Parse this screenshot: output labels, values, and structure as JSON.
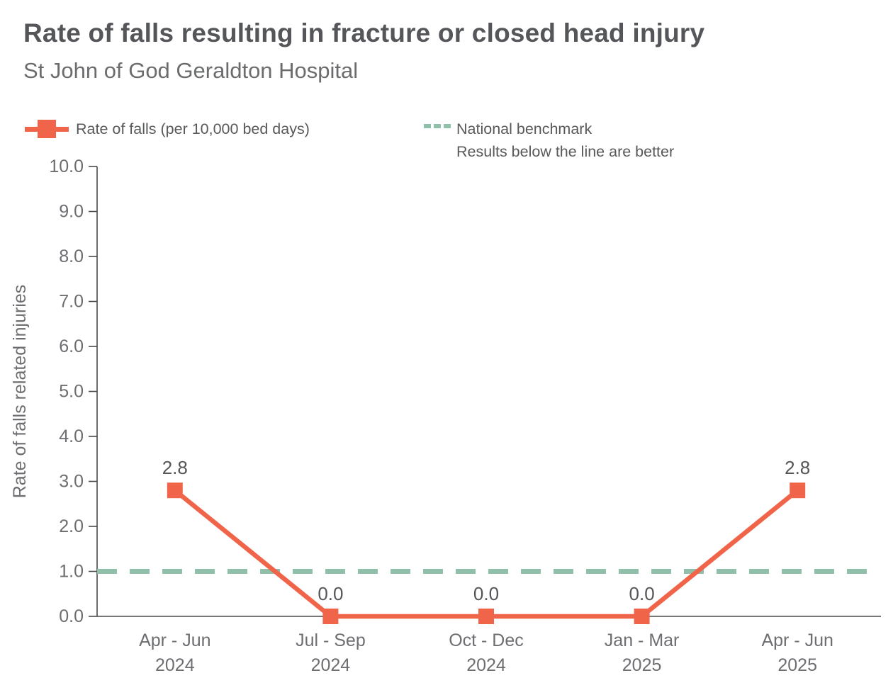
{
  "page": {
    "title": "Rate of falls resulting in fracture or closed head injury",
    "subtitle": "St John of God Geraldton Hospital"
  },
  "legend": {
    "series_label": "Rate of falls (per 10,000 bed days)",
    "benchmark_label": "National benchmark",
    "benchmark_note": "Results below the line are better"
  },
  "chart_data": {
    "type": "line",
    "title": "Rate of falls resulting in fracture or closed head injury",
    "subtitle": "St John of God Geraldton Hospital",
    "ylabel": "Rate of falls related injuries",
    "ylim": [
      0,
      10
    ],
    "ytick_step": 1,
    "ytick_decimals": 1,
    "grid": false,
    "legend_position": "top",
    "categories": [
      {
        "quarter": "Apr - Jun",
        "year": "2024"
      },
      {
        "quarter": "Jul - Sep",
        "year": "2024"
      },
      {
        "quarter": "Oct - Dec",
        "year": "2024"
      },
      {
        "quarter": "Jan - Mar",
        "year": "2025"
      },
      {
        "quarter": "Apr - Jun",
        "year": "2025"
      }
    ],
    "series": [
      {
        "name": "Rate of falls (per 10,000 bed days)",
        "values": [
          2.8,
          0.0,
          0.0,
          0.0,
          2.8
        ],
        "marker": "square"
      }
    ],
    "benchmark": {
      "label": "National benchmark",
      "note": "Results below the line are better",
      "value": 1.0,
      "style": "dashed"
    },
    "colors": {
      "series": "#f0654a",
      "benchmark": "#90c0a9",
      "axis": "#4a4a4c",
      "tick_text": "#6d6e71",
      "data_label": "#55565a"
    }
  }
}
